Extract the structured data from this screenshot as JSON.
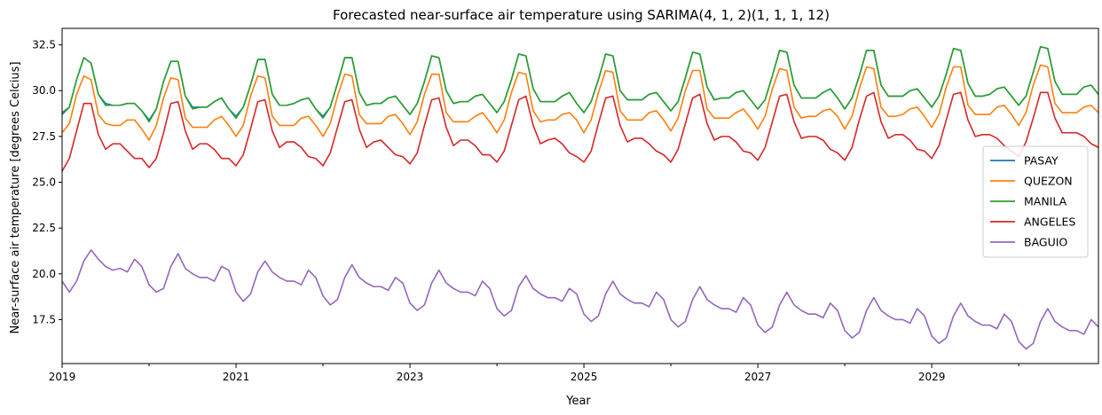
{
  "chart_data": {
    "type": "line",
    "title": "Forecasted near-surface air temperature using SARIMA(4, 1, 2)(1, 1, 1, 12)",
    "xlabel": "Year",
    "ylabel": "Near-surface air temperature [degrees Celcius]",
    "x_start": "2019-01",
    "x_end": "2030-12",
    "x_ticks": [
      "2019",
      "2021",
      "2023",
      "2025",
      "2027",
      "2029"
    ],
    "y_ticks": [
      "17.5",
      "20.0",
      "22.5",
      "25.0",
      "27.5",
      "30.0",
      "32.5"
    ],
    "ylim": [
      15.1,
      33.4
    ],
    "grid": false,
    "legend_position": "center-right",
    "series": [
      {
        "name": "PASAY",
        "color": "#1f77b4",
        "values": [
          28.7,
          29.1,
          30.6,
          31.8,
          31.5,
          29.8,
          29.3,
          29.2,
          29.2,
          29.3,
          29.3,
          28.9,
          28.4,
          29.0,
          30.5,
          31.6,
          31.6,
          29.7,
          29.1,
          29.1,
          29.1,
          29.4,
          29.6,
          29.0,
          28.6,
          29.1,
          30.3,
          31.7,
          31.7,
          29.8,
          29.2,
          29.2,
          29.3,
          29.5,
          29.6,
          29.0,
          28.6,
          29.1,
          30.4,
          31.8,
          31.8,
          29.9,
          29.2,
          29.3,
          29.3,
          29.6,
          29.7,
          29.2,
          28.7,
          29.3,
          30.5,
          31.9,
          31.8,
          30.0,
          29.3,
          29.4,
          29.4,
          29.7,
          29.8,
          29.3,
          28.8,
          29.4,
          30.6,
          32.0,
          31.9,
          30.1,
          29.4,
          29.4,
          29.4,
          29.7,
          29.9,
          29.3,
          28.8,
          29.4,
          30.6,
          32.0,
          31.9,
          30.0,
          29.5,
          29.5,
          29.5,
          29.8,
          29.9,
          29.4,
          28.9,
          29.4,
          30.7,
          32.1,
          32.0,
          30.2,
          29.5,
          29.6,
          29.6,
          29.9,
          30.0,
          29.5,
          29.0,
          29.5,
          30.8,
          32.2,
          32.1,
          30.3,
          29.6,
          29.6,
          29.6,
          29.9,
          30.1,
          29.6,
          29.0,
          29.6,
          30.8,
          32.2,
          32.2,
          30.3,
          29.7,
          29.7,
          29.7,
          30.0,
          30.1,
          29.6,
          29.1,
          29.7,
          30.9,
          32.3,
          32.2,
          30.4,
          29.7,
          29.7,
          29.8,
          30.1,
          30.2,
          29.7,
          29.2,
          29.7,
          31.0,
          32.4,
          32.3,
          30.5,
          29.8,
          29.8,
          29.8,
          30.2,
          30.3,
          29.8
        ]
      },
      {
        "name": "QUEZON",
        "color": "#ff7f0e",
        "values": [
          27.7,
          28.2,
          29.8,
          30.8,
          30.6,
          28.7,
          28.2,
          28.1,
          28.1,
          28.4,
          28.4,
          27.9,
          27.3,
          28.1,
          29.6,
          30.7,
          30.6,
          28.5,
          28.0,
          28.0,
          28.0,
          28.4,
          28.6,
          28.1,
          27.5,
          28.1,
          29.7,
          30.8,
          30.7,
          28.6,
          28.1,
          28.1,
          28.1,
          28.5,
          28.6,
          28.1,
          27.5,
          28.2,
          29.7,
          30.9,
          30.8,
          28.7,
          28.2,
          28.2,
          28.2,
          28.6,
          28.7,
          28.2,
          27.6,
          28.3,
          29.8,
          30.9,
          30.9,
          28.8,
          28.3,
          28.3,
          28.3,
          28.6,
          28.8,
          28.3,
          27.7,
          28.4,
          29.9,
          31.0,
          30.9,
          28.9,
          28.3,
          28.4,
          28.4,
          28.7,
          28.8,
          28.4,
          27.7,
          28.4,
          29.9,
          31.1,
          31.0,
          28.9,
          28.4,
          28.4,
          28.4,
          28.8,
          28.9,
          28.4,
          27.8,
          28.5,
          30.0,
          31.1,
          31.1,
          29.0,
          28.5,
          28.5,
          28.5,
          28.8,
          29.0,
          28.5,
          27.9,
          28.6,
          30.1,
          31.2,
          31.1,
          29.1,
          28.5,
          28.6,
          28.6,
          28.9,
          29.0,
          28.6,
          27.9,
          28.6,
          30.1,
          31.3,
          31.2,
          29.1,
          28.6,
          28.6,
          28.7,
          29.0,
          29.1,
          28.6,
          28.0,
          28.7,
          30.2,
          31.3,
          31.3,
          29.2,
          28.7,
          28.7,
          28.7,
          29.1,
          29.2,
          28.7,
          28.1,
          28.8,
          30.3,
          31.4,
          31.3,
          29.3,
          28.8,
          28.8,
          28.8,
          29.1,
          29.2,
          28.8
        ]
      },
      {
        "name": "MANILA",
        "color": "#2ca02c",
        "values": [
          28.8,
          29.1,
          30.6,
          31.8,
          31.5,
          29.8,
          29.2,
          29.2,
          29.2,
          29.3,
          29.3,
          28.9,
          28.3,
          29.0,
          30.5,
          31.6,
          31.6,
          29.7,
          29.0,
          29.1,
          29.1,
          29.4,
          29.6,
          29.0,
          28.5,
          29.1,
          30.3,
          31.7,
          31.7,
          29.8,
          29.2,
          29.2,
          29.3,
          29.5,
          29.6,
          29.0,
          28.5,
          29.1,
          30.4,
          31.8,
          31.8,
          29.9,
          29.2,
          29.3,
          29.3,
          29.6,
          29.7,
          29.2,
          28.7,
          29.3,
          30.5,
          31.9,
          31.8,
          30.0,
          29.3,
          29.4,
          29.4,
          29.7,
          29.8,
          29.3,
          28.8,
          29.4,
          30.6,
          32.0,
          31.9,
          30.1,
          29.4,
          29.4,
          29.4,
          29.7,
          29.9,
          29.3,
          28.8,
          29.4,
          30.6,
          32.0,
          31.9,
          30.0,
          29.5,
          29.5,
          29.5,
          29.8,
          29.9,
          29.4,
          28.9,
          29.4,
          30.7,
          32.1,
          32.0,
          30.2,
          29.5,
          29.6,
          29.6,
          29.9,
          30.0,
          29.5,
          29.0,
          29.5,
          30.8,
          32.2,
          32.1,
          30.3,
          29.6,
          29.6,
          29.6,
          29.9,
          30.1,
          29.6,
          29.0,
          29.6,
          30.8,
          32.2,
          32.2,
          30.3,
          29.7,
          29.7,
          29.7,
          30.0,
          30.1,
          29.6,
          29.1,
          29.7,
          30.9,
          32.3,
          32.2,
          30.4,
          29.7,
          29.7,
          29.8,
          30.1,
          30.2,
          29.7,
          29.2,
          29.7,
          31.0,
          32.4,
          32.3,
          30.5,
          29.8,
          29.8,
          29.8,
          30.2,
          30.3,
          29.8
        ]
      },
      {
        "name": "ANGELES",
        "color": "#d62728",
        "values": [
          25.6,
          26.3,
          27.8,
          29.3,
          29.3,
          27.6,
          26.8,
          27.1,
          27.1,
          26.7,
          26.3,
          26.3,
          25.8,
          26.3,
          27.7,
          29.3,
          29.4,
          27.8,
          26.8,
          27.1,
          27.1,
          26.8,
          26.3,
          26.3,
          25.9,
          26.5,
          27.9,
          29.4,
          29.5,
          27.8,
          26.9,
          27.2,
          27.2,
          26.9,
          26.4,
          26.3,
          25.9,
          26.6,
          28.0,
          29.4,
          29.5,
          27.9,
          26.9,
          27.2,
          27.3,
          26.9,
          26.5,
          26.4,
          26.0,
          26.6,
          28.1,
          29.5,
          29.6,
          28.0,
          27.0,
          27.3,
          27.3,
          27.0,
          26.5,
          26.5,
          26.1,
          26.7,
          28.1,
          29.5,
          29.7,
          28.1,
          27.1,
          27.3,
          27.4,
          27.1,
          26.6,
          26.4,
          26.1,
          26.7,
          28.2,
          29.6,
          29.7,
          28.1,
          27.2,
          27.4,
          27.4,
          27.1,
          26.7,
          26.5,
          26.1,
          26.8,
          28.2,
          29.6,
          29.8,
          28.2,
          27.3,
          27.5,
          27.5,
          27.2,
          26.7,
          26.6,
          26.2,
          26.9,
          28.3,
          29.7,
          29.8,
          28.3,
          27.4,
          27.5,
          27.5,
          27.3,
          26.8,
          26.6,
          26.2,
          26.9,
          28.4,
          29.7,
          29.9,
          28.3,
          27.4,
          27.6,
          27.6,
          27.3,
          26.8,
          26.7,
          26.3,
          27.0,
          28.4,
          29.8,
          29.9,
          28.4,
          27.5,
          27.6,
          27.6,
          27.4,
          27.0,
          26.7,
          26.4,
          27.2,
          28.5,
          29.9,
          29.9,
          28.5,
          27.7,
          27.7,
          27.7,
          27.5,
          27.1,
          26.9
        ]
      },
      {
        "name": "BAGUIO",
        "color": "#9467bd",
        "values": [
          19.6,
          19.0,
          19.6,
          20.7,
          21.3,
          20.8,
          20.4,
          20.2,
          20.3,
          20.1,
          20.8,
          20.4,
          19.4,
          19.0,
          19.2,
          20.4,
          21.1,
          20.3,
          20.0,
          19.8,
          19.8,
          19.6,
          20.4,
          20.2,
          19.0,
          18.5,
          18.9,
          20.1,
          20.7,
          20.1,
          19.8,
          19.6,
          19.6,
          19.4,
          20.2,
          19.8,
          18.8,
          18.3,
          18.6,
          19.8,
          20.5,
          19.8,
          19.5,
          19.3,
          19.3,
          19.1,
          19.8,
          19.5,
          18.4,
          18.0,
          18.3,
          19.5,
          20.2,
          19.5,
          19.2,
          19.0,
          19.0,
          18.8,
          19.6,
          19.2,
          18.1,
          17.7,
          18.0,
          19.3,
          19.9,
          19.2,
          18.9,
          18.7,
          18.7,
          18.5,
          19.2,
          18.9,
          17.8,
          17.4,
          17.7,
          18.9,
          19.6,
          18.9,
          18.6,
          18.4,
          18.4,
          18.2,
          19.0,
          18.6,
          17.5,
          17.1,
          17.4,
          18.6,
          19.3,
          18.6,
          18.3,
          18.1,
          18.1,
          17.9,
          18.7,
          18.3,
          17.2,
          16.8,
          17.1,
          18.3,
          19.0,
          18.3,
          18.0,
          17.8,
          17.8,
          17.6,
          18.4,
          18.0,
          16.9,
          16.5,
          16.8,
          18.0,
          18.7,
          18.0,
          17.7,
          17.5,
          17.5,
          17.3,
          18.1,
          17.7,
          16.6,
          16.2,
          16.5,
          17.7,
          18.4,
          17.7,
          17.4,
          17.2,
          17.2,
          17.0,
          17.8,
          17.4,
          16.3,
          15.9,
          16.2,
          17.4,
          18.1,
          17.4,
          17.1,
          16.9,
          16.9,
          16.7,
          17.5,
          17.1
        ]
      }
    ]
  }
}
